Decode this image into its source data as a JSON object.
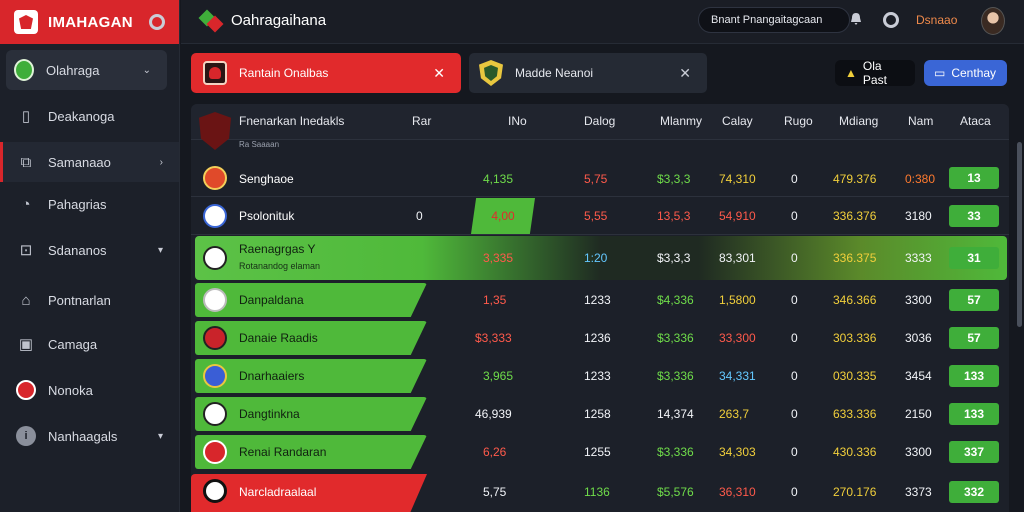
{
  "brand": {
    "name": "IMAHAGAN"
  },
  "sidebar": {
    "items": [
      {
        "label": "Olahraga",
        "icon": "green-ball-icon"
      },
      {
        "label": "Deakanoga",
        "icon": "document-icon"
      },
      {
        "label": "Samanaao",
        "icon": "tag-icon"
      },
      {
        "label": "Pahagrias",
        "icon": "chat-icon"
      },
      {
        "label": "Sdananos",
        "icon": "bookmark-icon"
      },
      {
        "label": "Pontnarlan",
        "icon": "home-icon"
      },
      {
        "label": "Camaga",
        "icon": "briefcase-icon"
      },
      {
        "label": "Nonoka",
        "icon": "red-badge-icon"
      },
      {
        "label": "Nanhaagals",
        "icon": "info-icon"
      }
    ]
  },
  "topbar": {
    "title": "Oahragaihana",
    "search_text": "Bnant Pnangaitagcaan",
    "user_name": "Dsnaao"
  },
  "cards": {
    "red_label": "Rantain Onalbas",
    "dark_label": "Madde Neanoi",
    "close_glyph": "✕",
    "btn_dark": "Ola Past",
    "btn_blue": "Centhay"
  },
  "table": {
    "headers": {
      "team": "Fnenarkan Inedakls",
      "subhead": "Ra Saaaan",
      "c1": "Rar",
      "c2": "INo",
      "c3": "Dalog",
      "c4": "Mlanmy",
      "c5": "Calay",
      "c6": "Rugo",
      "c7": "Mdiang",
      "c8": "Nam",
      "c9": "Ataca"
    },
    "rows": [
      {
        "name": "Senghaoe",
        "sub": "",
        "c1": "",
        "c2": "4,135",
        "c3": "5,75",
        "c4": "$3,3,3",
        "c5": "74,310",
        "c6": "0",
        "c7": "479.376",
        "c8": "0:380",
        "c9": "13"
      },
      {
        "name": "Psolonituk",
        "sub": "",
        "c1": "0",
        "c2": "4,00",
        "c3": "5,55",
        "c4": "13,5,3",
        "c5": "54,910",
        "c6": "0",
        "c7": "336.376",
        "c8": "3180",
        "c9": "33"
      },
      {
        "name": "Raenagrgas Y",
        "sub": "Rotanandog elaman",
        "c1": "",
        "c2": "3,335",
        "c3": "1:20",
        "c4": "$3,3,3",
        "c5": "83,301",
        "c6": "0",
        "c7": "336.375",
        "c8": "3333",
        "c9": "31"
      },
      {
        "name": "Danpaldana",
        "sub": "",
        "c1": "",
        "c2": "1,35",
        "c3": "1233",
        "c4": "$4,336",
        "c5": "1,5800",
        "c6": "0",
        "c7": "346.366",
        "c8": "3300",
        "c9": "57"
      },
      {
        "name": "Danaie Raadis",
        "sub": "",
        "c1": "",
        "c2": "$3,333",
        "c3": "1236",
        "c4": "$3,336",
        "c5": "33,300",
        "c6": "0",
        "c7": "303.336",
        "c8": "3036",
        "c9": "57"
      },
      {
        "name": "Dnarhaaiers",
        "sub": "",
        "c1": "",
        "c2": "3,965",
        "c3": "1233",
        "c4": "$3,336",
        "c5": "34,331",
        "c6": "0",
        "c7": "030.335",
        "c8": "3454",
        "c9": "133"
      },
      {
        "name": "Dangtinkna",
        "sub": "",
        "c1": "",
        "c2": "46,939",
        "c3": "1258",
        "c4": "14,374",
        "c5": "263,7",
        "c6": "0",
        "c7": "633.336",
        "c8": "2150",
        "c9": "133"
      },
      {
        "name": "Renai Randaran",
        "sub": "",
        "c1": "",
        "c2": "6,26",
        "c3": "1255",
        "c4": "$3,336",
        "c5": "34,303",
        "c6": "0",
        "c7": "430.336",
        "c8": "3300",
        "c9": "337"
      },
      {
        "name": "Narcladraalaal",
        "sub": "",
        "c1": "",
        "c2": "5,75",
        "c3": "1136",
        "c4": "$5,576",
        "c5": "36,310",
        "c6": "0",
        "c7": "270.176",
        "c8": "3373",
        "c9": "332"
      }
    ]
  }
}
